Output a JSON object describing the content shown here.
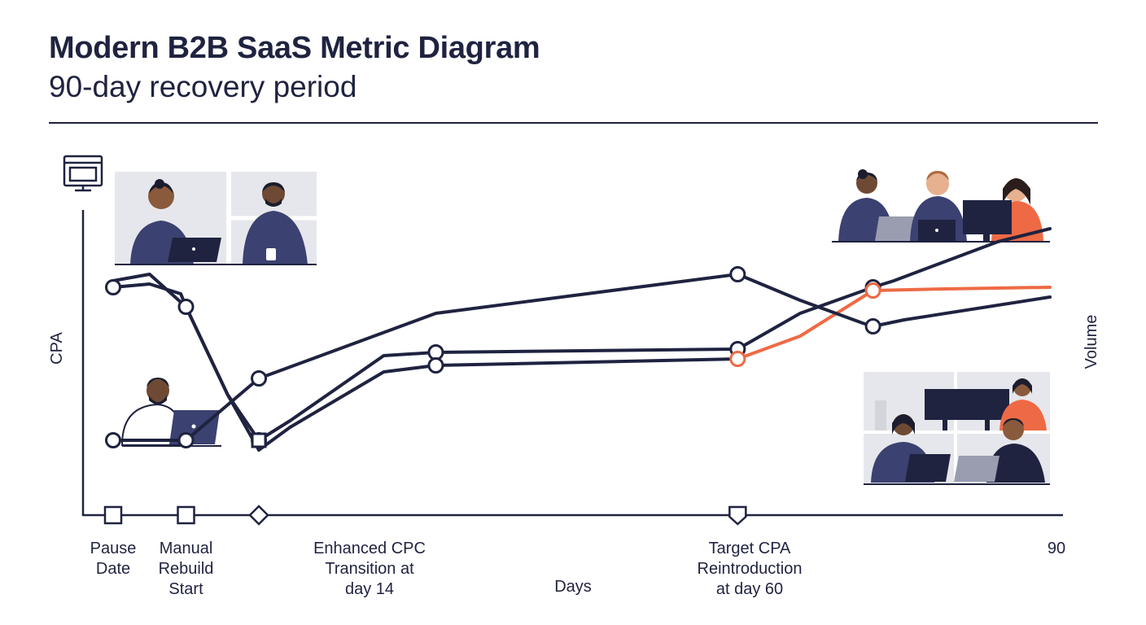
{
  "title": "Modern B2B SaaS Metric Diagram",
  "subtitle": "90-day recovery period",
  "colors": {
    "ink": "#1f2340",
    "accent": "#ee6a45",
    "line": "#1f2340"
  },
  "icons": {
    "axis_icon": "monitor-icon"
  },
  "chart_data": {
    "type": "line",
    "xlabel": "Days",
    "ylabel_left": "CPA",
    "ylabel_right": "Volume",
    "xlim": [
      0,
      90
    ],
    "ylim": [
      0,
      100
    ],
    "grid": false,
    "x_tick_labels": [
      {
        "x": 0,
        "label": "Pause Date",
        "lines": [
          "Pause",
          "Date"
        ]
      },
      {
        "x": 7,
        "label": "Manual Rebuild Start",
        "lines": [
          "Manual",
          "Rebuild",
          "Start"
        ]
      },
      {
        "x": 14,
        "label": "Enhanced CPC Transition at day 14",
        "lines": [
          "Enhanced CPC",
          "Transition at",
          "day 14"
        ]
      },
      {
        "x": 60,
        "label": "Target CPA Reintroduction at day 60",
        "lines": [
          "Target CPA",
          "Reintroduction",
          "at day 60"
        ]
      },
      {
        "x": 90,
        "label": "90",
        "lines": [
          "90"
        ]
      }
    ],
    "event_markers": [
      {
        "x": 0,
        "shape": "square"
      },
      {
        "x": 7,
        "shape": "square"
      },
      {
        "x": 14,
        "shape": "diamond"
      },
      {
        "x": 60,
        "shape": "triangle-down"
      }
    ],
    "series": [
      {
        "color": "#1f2340",
        "marker": "circle",
        "points": [
          [
            0,
            70
          ],
          [
            3.5,
            71
          ],
          [
            6.5,
            68
          ],
          [
            7,
            64
          ],
          [
            11,
            37
          ],
          [
            14,
            23
          ],
          [
            17,
            29
          ],
          [
            26,
            49
          ],
          [
            31,
            50
          ],
          [
            60,
            51
          ],
          [
            66,
            62
          ],
          [
            73,
            70
          ],
          [
            75,
            72
          ],
          [
            80,
            78
          ],
          [
            85,
            84
          ],
          [
            90,
            88
          ]
        ],
        "markers_at": [
          0,
          7,
          14,
          31,
          60,
          73
        ]
      },
      {
        "color": "#1f2340",
        "marker": "circle",
        "points": [
          [
            0,
            72
          ],
          [
            3.5,
            74
          ],
          [
            7,
            64
          ],
          [
            11,
            37
          ],
          [
            14,
            20
          ],
          [
            17,
            27
          ],
          [
            26,
            44
          ],
          [
            31,
            46
          ],
          [
            60,
            48
          ]
        ],
        "markers_at": [
          31
        ]
      },
      {
        "color": "#ee6a45",
        "marker": "circle",
        "points": [
          [
            60,
            48
          ],
          [
            66,
            55
          ],
          [
            73,
            69
          ],
          [
            80,
            69.5
          ],
          [
            90,
            70
          ]
        ],
        "markers_at": [
          60,
          73
        ]
      },
      {
        "color": "#1f2340",
        "marker": "circle",
        "points": [
          [
            0,
            23
          ],
          [
            7,
            23
          ],
          [
            14,
            42
          ],
          [
            31,
            62
          ],
          [
            60,
            74
          ],
          [
            66,
            66
          ],
          [
            72,
            59
          ],
          [
            73,
            58
          ],
          [
            76,
            60
          ],
          [
            90,
            67
          ]
        ],
        "markers_at": [
          0,
          7,
          14,
          60,
          73
        ]
      }
    ],
    "square_marker": {
      "x": 14,
      "y": 23
    }
  }
}
